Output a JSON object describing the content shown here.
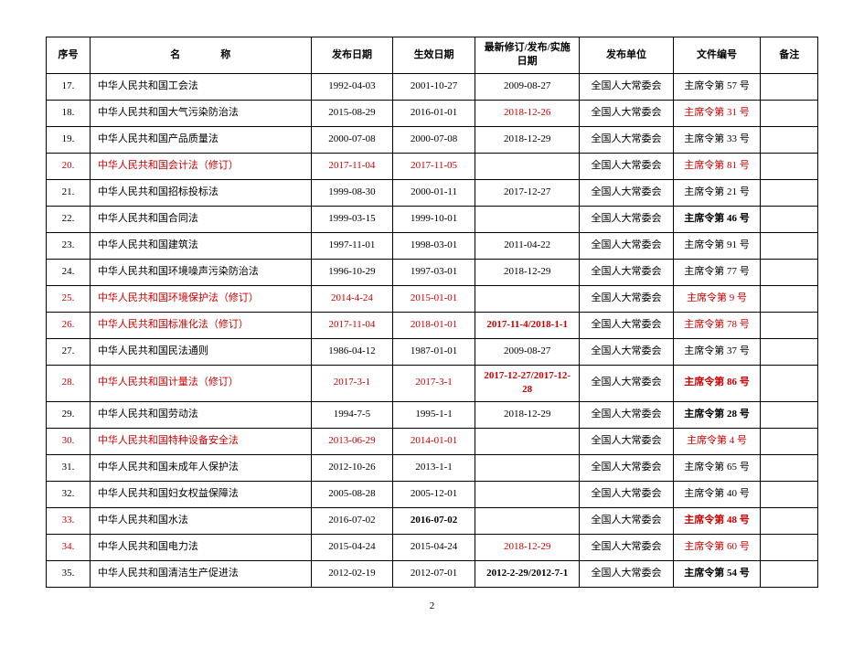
{
  "page_number": "2",
  "colors": {
    "text": "#000000",
    "highlight": "#cc0000",
    "border": "#000000",
    "background": "#ffffff"
  },
  "header": {
    "seq": "序号",
    "name": "名　　　　称",
    "pub_date": "发布日期",
    "eff_date": "生效日期",
    "latest": "最新修订/发布/实施日期",
    "org": "发布单位",
    "docno": "文件编号",
    "note": "备注"
  },
  "rows": [
    {
      "seq": "17.",
      "name": "中华人民共和国工会法",
      "pub": "1992-04-03",
      "eff": "2001-10-27",
      "latest": "2009-08-27",
      "org": "全国人大常委会",
      "docno": "主席令第 57 号",
      "note": "",
      "red_cols": [],
      "bold_cols": []
    },
    {
      "seq": "18.",
      "name": "中华人民共和国大气污染防治法",
      "pub": "2015-08-29",
      "eff": "2016-01-01",
      "latest": "2018-12-26",
      "org": "全国人大常委会",
      "docno": "主席令第 31 号",
      "note": "",
      "red_cols": [
        "latest",
        "docno"
      ],
      "bold_cols": []
    },
    {
      "seq": "19.",
      "name": "中华人民共和国产品质量法",
      "pub": "2000-07-08",
      "eff": "2000-07-08",
      "latest": "2018-12-29",
      "org": "全国人大常委会",
      "docno": "主席令第 33 号",
      "note": "",
      "red_cols": [],
      "bold_cols": []
    },
    {
      "seq": "20.",
      "name": "中华人民共和国会计法（修订）",
      "pub": "2017-11-04",
      "eff": "2017-11-05",
      "latest": "",
      "org": "全国人大常委会",
      "docno": "主席令第 81 号",
      "note": "",
      "red_cols": [
        "seq",
        "name",
        "pub",
        "eff",
        "docno"
      ],
      "bold_cols": []
    },
    {
      "seq": "21.",
      "name": "中华人民共和国招标投标法",
      "pub": "1999-08-30",
      "eff": "2000-01-11",
      "latest": "2017-12-27",
      "org": "全国人大常委会",
      "docno": "主席令第 21 号",
      "note": "",
      "red_cols": [],
      "bold_cols": []
    },
    {
      "seq": "22.",
      "name": "中华人民共和国合同法",
      "pub": "1999-03-15",
      "eff": "1999-10-01",
      "latest": "",
      "org": "全国人大常委会",
      "docno": "主席令第 46 号",
      "note": "",
      "red_cols": [],
      "bold_cols": [
        "docno"
      ]
    },
    {
      "seq": "23.",
      "name": "中华人民共和国建筑法",
      "pub": "1997-11-01",
      "eff": "1998-03-01",
      "latest": "2011-04-22",
      "org": "全国人大常委会",
      "docno": "主席令第 91 号",
      "note": "",
      "red_cols": [],
      "bold_cols": []
    },
    {
      "seq": "24.",
      "name": "中华人民共和国环境噪声污染防治法",
      "pub": "1996-10-29",
      "eff": "1997-03-01",
      "latest": "2018-12-29",
      "org": "全国人大常委会",
      "docno": "主席令第 77 号",
      "note": "",
      "red_cols": [],
      "bold_cols": []
    },
    {
      "seq": "25.",
      "name": "中华人民共和国环境保护法（修订）",
      "pub": "2014-4-24",
      "eff": "2015-01-01",
      "latest": "",
      "org": "全国人大常委会",
      "docno": "主席令第 9 号",
      "note": "",
      "red_cols": [
        "seq",
        "name",
        "pub",
        "eff",
        "docno"
      ],
      "bold_cols": []
    },
    {
      "seq": "26.",
      "name": "中华人民共和国标准化法（修订）",
      "pub": "2017-11-04",
      "eff": "2018-01-01",
      "latest": "2017-11-4/2018-1-1",
      "org": "全国人大常委会",
      "docno": "主席令第 78 号",
      "note": "",
      "red_cols": [
        "seq",
        "name",
        "pub",
        "eff",
        "latest",
        "docno"
      ],
      "bold_cols": [
        "latest"
      ]
    },
    {
      "seq": "27.",
      "name": "中华人民共和国民法通则",
      "pub": "1986-04-12",
      "eff": "1987-01-01",
      "latest": "2009-08-27",
      "org": "全国人大常委会",
      "docno": "主席令第 37 号",
      "note": "",
      "red_cols": [],
      "bold_cols": []
    },
    {
      "seq": "28.",
      "name": "中华人民共和国计量法（修订）",
      "pub": "2017-3-1",
      "eff": "2017-3-1",
      "latest": "2017-12-27/2017-12-28",
      "org": "全国人大常委会",
      "docno": "主席令第 86 号",
      "note": "",
      "red_cols": [
        "seq",
        "name",
        "pub",
        "eff",
        "latest",
        "docno"
      ],
      "bold_cols": [
        "latest",
        "docno"
      ]
    },
    {
      "seq": "29.",
      "name": "中华人民共和国劳动法",
      "pub": "1994-7-5",
      "eff": "1995-1-1",
      "latest": "2018-12-29",
      "org": "全国人大常委会",
      "docno": "主席令第 28 号",
      "note": "",
      "red_cols": [],
      "bold_cols": [
        "docno"
      ]
    },
    {
      "seq": "30.",
      "name": "中华人民共和国特种设备安全法",
      "pub": "2013-06-29",
      "eff": "2014-01-01",
      "latest": "",
      "org": "全国人大常委会",
      "docno": "主席令第 4 号",
      "note": "",
      "red_cols": [
        "seq",
        "name",
        "pub",
        "eff",
        "docno"
      ],
      "bold_cols": []
    },
    {
      "seq": "31.",
      "name": "中华人民共和国未成年人保护法",
      "pub": "2012-10-26",
      "eff": "2013-1-1",
      "latest": "",
      "org": "全国人大常委会",
      "docno": "主席令第 65 号",
      "note": "",
      "red_cols": [],
      "bold_cols": []
    },
    {
      "seq": "32.",
      "name": "中华人民共和国妇女权益保障法",
      "pub": "2005-08-28",
      "eff": "2005-12-01",
      "latest": "",
      "org": "全国人大常委会",
      "docno": "主席令第 40 号",
      "note": "",
      "red_cols": [],
      "bold_cols": []
    },
    {
      "seq": "33.",
      "name": "中华人民共和国水法",
      "pub": "2016-07-02",
      "eff": "2016-07-02",
      "latest": "",
      "org": "全国人大常委会",
      "docno": "主席令第 48 号",
      "note": "",
      "red_cols": [
        "seq",
        "docno"
      ],
      "bold_cols": [
        "eff",
        "docno"
      ]
    },
    {
      "seq": "34.",
      "name": "中华人民共和国电力法",
      "pub": "2015-04-24",
      "eff": "2015-04-24",
      "latest": "2018-12-29",
      "org": "全国人大常委会",
      "docno": "主席令第 60 号",
      "note": "",
      "red_cols": [
        "seq",
        "latest",
        "docno"
      ],
      "bold_cols": []
    },
    {
      "seq": "35.",
      "name": "中华人民共和国清洁生产促进法",
      "pub": "2012-02-19",
      "eff": "2012-07-01",
      "latest": "2012-2-29/2012-7-1",
      "org": "全国人大常委会",
      "docno": "主席令第 54 号",
      "note": "",
      "red_cols": [],
      "bold_cols": [
        "latest",
        "docno"
      ]
    }
  ]
}
